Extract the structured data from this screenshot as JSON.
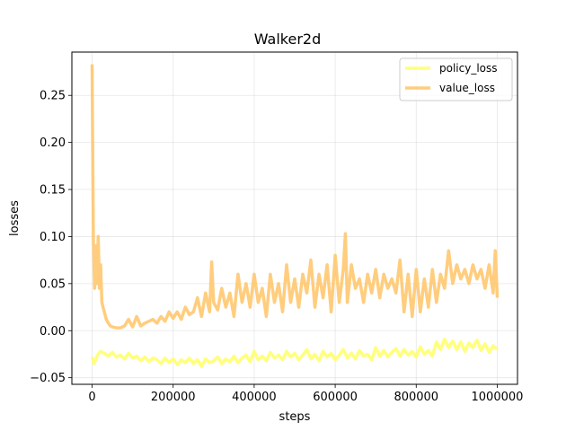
{
  "chart_data": {
    "type": "line",
    "title": "Walker2d",
    "xlabel": "steps",
    "ylabel": "losses",
    "xlim": [
      -50000,
      1050000
    ],
    "ylim": [
      -0.057,
      0.296
    ],
    "x_ticks": [
      0,
      200000,
      400000,
      600000,
      800000,
      1000000
    ],
    "x_tick_labels": [
      "0",
      "200000",
      "400000",
      "600000",
      "800000",
      "1000000"
    ],
    "y_ticks": [
      -0.05,
      0.0,
      0.05,
      0.1,
      0.15,
      0.2,
      0.25
    ],
    "y_tick_labels": [
      "−0.05",
      "0.00",
      "0.05",
      "0.10",
      "0.15",
      "0.20",
      "0.25"
    ],
    "grid": true,
    "legend_position": "top-right",
    "series": [
      {
        "name": "policy_loss",
        "color": "#ffff66",
        "points": [
          [
            0,
            -0.028
          ],
          [
            5000,
            -0.035
          ],
          [
            12000,
            -0.027
          ],
          [
            20000,
            -0.022
          ],
          [
            30000,
            -0.024
          ],
          [
            40000,
            -0.027
          ],
          [
            50000,
            -0.023
          ],
          [
            60000,
            -0.028
          ],
          [
            70000,
            -0.026
          ],
          [
            80000,
            -0.03
          ],
          [
            90000,
            -0.024
          ],
          [
            100000,
            -0.029
          ],
          [
            110000,
            -0.027
          ],
          [
            120000,
            -0.032
          ],
          [
            130000,
            -0.028
          ],
          [
            140000,
            -0.033
          ],
          [
            150000,
            -0.029
          ],
          [
            160000,
            -0.031
          ],
          [
            170000,
            -0.035
          ],
          [
            180000,
            -0.029
          ],
          [
            190000,
            -0.034
          ],
          [
            200000,
            -0.03
          ],
          [
            210000,
            -0.036
          ],
          [
            220000,
            -0.031
          ],
          [
            230000,
            -0.034
          ],
          [
            240000,
            -0.029
          ],
          [
            250000,
            -0.035
          ],
          [
            260000,
            -0.031
          ],
          [
            270000,
            -0.038
          ],
          [
            280000,
            -0.03
          ],
          [
            290000,
            -0.034
          ],
          [
            300000,
            -0.032
          ],
          [
            310000,
            -0.028
          ],
          [
            320000,
            -0.035
          ],
          [
            330000,
            -0.03
          ],
          [
            340000,
            -0.033
          ],
          [
            350000,
            -0.027
          ],
          [
            360000,
            -0.034
          ],
          [
            370000,
            -0.029
          ],
          [
            380000,
            -0.026
          ],
          [
            390000,
            -0.033
          ],
          [
            400000,
            -0.022
          ],
          [
            410000,
            -0.031
          ],
          [
            420000,
            -0.027
          ],
          [
            430000,
            -0.032
          ],
          [
            440000,
            -0.023
          ],
          [
            450000,
            -0.029
          ],
          [
            460000,
            -0.026
          ],
          [
            470000,
            -0.031
          ],
          [
            480000,
            -0.022
          ],
          [
            490000,
            -0.028
          ],
          [
            500000,
            -0.024
          ],
          [
            510000,
            -0.031
          ],
          [
            520000,
            -0.026
          ],
          [
            530000,
            -0.02
          ],
          [
            540000,
            -0.03
          ],
          [
            550000,
            -0.025
          ],
          [
            560000,
            -0.032
          ],
          [
            570000,
            -0.022
          ],
          [
            580000,
            -0.028
          ],
          [
            590000,
            -0.024
          ],
          [
            600000,
            -0.031
          ],
          [
            610000,
            -0.026
          ],
          [
            620000,
            -0.02
          ],
          [
            630000,
            -0.029
          ],
          [
            640000,
            -0.024
          ],
          [
            650000,
            -0.03
          ],
          [
            660000,
            -0.021
          ],
          [
            670000,
            -0.027
          ],
          [
            680000,
            -0.025
          ],
          [
            690000,
            -0.031
          ],
          [
            700000,
            -0.018
          ],
          [
            710000,
            -0.027
          ],
          [
            720000,
            -0.021
          ],
          [
            730000,
            -0.028
          ],
          [
            740000,
            -0.023
          ],
          [
            750000,
            -0.019
          ],
          [
            760000,
            -0.027
          ],
          [
            770000,
            -0.02
          ],
          [
            780000,
            -0.026
          ],
          [
            790000,
            -0.022
          ],
          [
            800000,
            -0.028
          ],
          [
            810000,
            -0.017
          ],
          [
            820000,
            -0.025
          ],
          [
            830000,
            -0.021
          ],
          [
            840000,
            -0.027
          ],
          [
            850000,
            -0.012
          ],
          [
            860000,
            -0.02
          ],
          [
            870000,
            -0.009
          ],
          [
            880000,
            -0.018
          ],
          [
            890000,
            -0.011
          ],
          [
            900000,
            -0.02
          ],
          [
            910000,
            -0.012
          ],
          [
            920000,
            -0.022
          ],
          [
            930000,
            -0.013
          ],
          [
            940000,
            -0.018
          ],
          [
            950000,
            -0.01
          ],
          [
            960000,
            -0.021
          ],
          [
            970000,
            -0.014
          ],
          [
            980000,
            -0.023
          ],
          [
            990000,
            -0.016
          ],
          [
            1000000,
            -0.02
          ]
        ]
      },
      {
        "name": "value_loss",
        "color": "#ffc466",
        "points": [
          [
            0,
            0.283
          ],
          [
            3000,
            0.1
          ],
          [
            6000,
            0.045
          ],
          [
            9000,
            0.09
          ],
          [
            12000,
            0.05
          ],
          [
            15000,
            0.1
          ],
          [
            18000,
            0.045
          ],
          [
            21000,
            0.07
          ],
          [
            24000,
            0.03
          ],
          [
            27000,
            0.025
          ],
          [
            30000,
            0.02
          ],
          [
            35000,
            0.012
          ],
          [
            40000,
            0.008
          ],
          [
            45000,
            0.005
          ],
          [
            50000,
            0.004
          ],
          [
            60000,
            0.003
          ],
          [
            70000,
            0.003
          ],
          [
            80000,
            0.005
          ],
          [
            90000,
            0.012
          ],
          [
            100000,
            0.004
          ],
          [
            110000,
            0.015
          ],
          [
            120000,
            0.005
          ],
          [
            130000,
            0.008
          ],
          [
            140000,
            0.01
          ],
          [
            150000,
            0.012
          ],
          [
            160000,
            0.008
          ],
          [
            170000,
            0.015
          ],
          [
            180000,
            0.01
          ],
          [
            190000,
            0.02
          ],
          [
            200000,
            0.013
          ],
          [
            210000,
            0.02
          ],
          [
            220000,
            0.012
          ],
          [
            230000,
            0.025
          ],
          [
            240000,
            0.017
          ],
          [
            250000,
            0.02
          ],
          [
            260000,
            0.035
          ],
          [
            270000,
            0.015
          ],
          [
            280000,
            0.04
          ],
          [
            290000,
            0.02
          ],
          [
            295000,
            0.073
          ],
          [
            300000,
            0.03
          ],
          [
            310000,
            0.022
          ],
          [
            320000,
            0.045
          ],
          [
            330000,
            0.025
          ],
          [
            340000,
            0.04
          ],
          [
            350000,
            0.015
          ],
          [
            360000,
            0.06
          ],
          [
            370000,
            0.03
          ],
          [
            380000,
            0.05
          ],
          [
            390000,
            0.025
          ],
          [
            400000,
            0.06
          ],
          [
            410000,
            0.03
          ],
          [
            420000,
            0.045
          ],
          [
            430000,
            0.015
          ],
          [
            440000,
            0.06
          ],
          [
            450000,
            0.03
          ],
          [
            460000,
            0.05
          ],
          [
            470000,
            0.02
          ],
          [
            480000,
            0.07
          ],
          [
            490000,
            0.03
          ],
          [
            500000,
            0.055
          ],
          [
            510000,
            0.025
          ],
          [
            520000,
            0.06
          ],
          [
            530000,
            0.04
          ],
          [
            540000,
            0.075
          ],
          [
            550000,
            0.025
          ],
          [
            560000,
            0.06
          ],
          [
            570000,
            0.035
          ],
          [
            580000,
            0.07
          ],
          [
            590000,
            0.02
          ],
          [
            600000,
            0.08
          ],
          [
            610000,
            0.03
          ],
          [
            620000,
            0.065
          ],
          [
            625000,
            0.103
          ],
          [
            630000,
            0.03
          ],
          [
            640000,
            0.07
          ],
          [
            650000,
            0.045
          ],
          [
            660000,
            0.055
          ],
          [
            670000,
            0.03
          ],
          [
            680000,
            0.06
          ],
          [
            690000,
            0.04
          ],
          [
            700000,
            0.065
          ],
          [
            710000,
            0.035
          ],
          [
            720000,
            0.06
          ],
          [
            730000,
            0.045
          ],
          [
            740000,
            0.055
          ],
          [
            750000,
            0.04
          ],
          [
            760000,
            0.075
          ],
          [
            770000,
            0.02
          ],
          [
            780000,
            0.06
          ],
          [
            790000,
            0.015
          ],
          [
            800000,
            0.065
          ],
          [
            810000,
            0.02
          ],
          [
            820000,
            0.055
          ],
          [
            830000,
            0.025
          ],
          [
            840000,
            0.065
          ],
          [
            850000,
            0.03
          ],
          [
            860000,
            0.06
          ],
          [
            870000,
            0.045
          ],
          [
            880000,
            0.085
          ],
          [
            890000,
            0.05
          ],
          [
            900000,
            0.07
          ],
          [
            910000,
            0.055
          ],
          [
            920000,
            0.065
          ],
          [
            930000,
            0.05
          ],
          [
            940000,
            0.07
          ],
          [
            950000,
            0.055
          ],
          [
            960000,
            0.065
          ],
          [
            970000,
            0.045
          ],
          [
            980000,
            0.07
          ],
          [
            990000,
            0.04
          ],
          [
            995000,
            0.085
          ],
          [
            1000000,
            0.035
          ]
        ]
      }
    ]
  }
}
